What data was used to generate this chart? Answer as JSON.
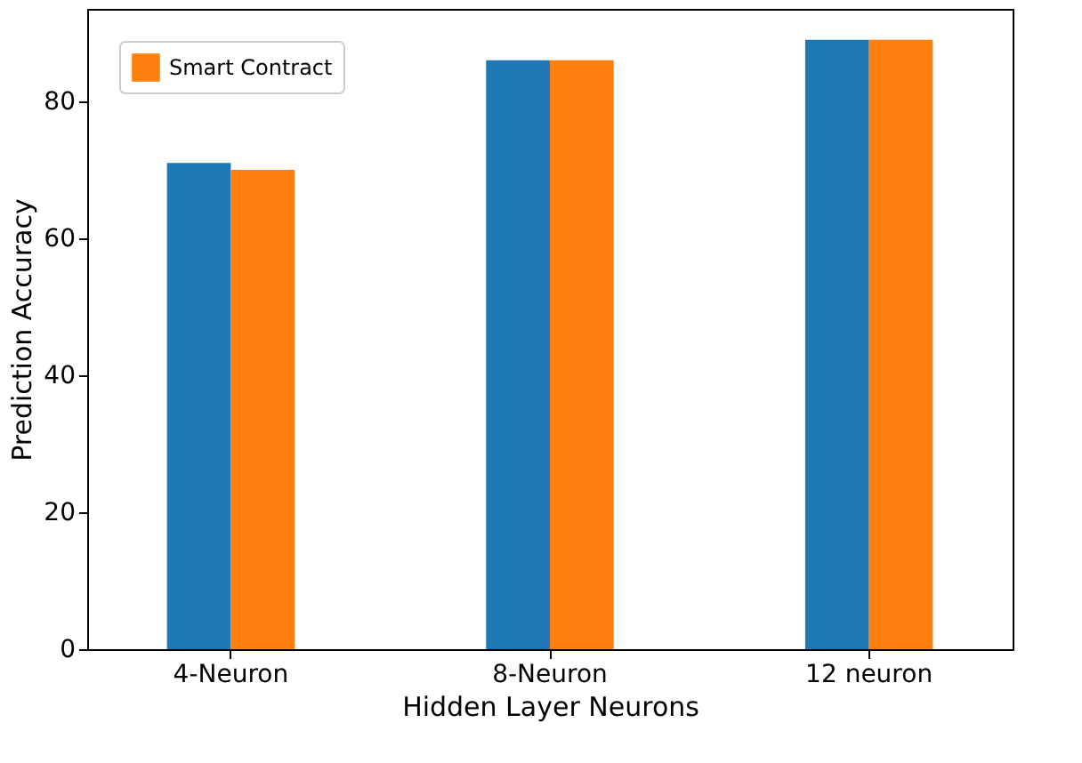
{
  "chart_data": {
    "type": "bar",
    "xlabel": "Hidden Layer Neurons",
    "ylabel": "Prediction Accuracy",
    "categories": [
      "4-Neuron",
      "8-Neuron",
      "12 neuron"
    ],
    "series": [
      {
        "color": "#1f77b4",
        "values": [
          71,
          86,
          89
        ]
      },
      {
        "name": "Smart Contract",
        "color": "#ff7f0e",
        "values": [
          70,
          86,
          89
        ]
      }
    ],
    "ylim": [
      0,
      93.5
    ],
    "yticks": [
      0,
      20,
      40,
      60,
      80
    ],
    "grid": false,
    "legend": "top left"
  }
}
